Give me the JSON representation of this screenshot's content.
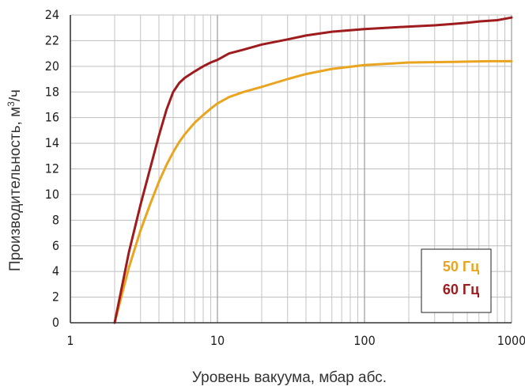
{
  "chart_data": {
    "type": "line",
    "title": "",
    "xlabel": "Уровень вакуума, мбар абс.",
    "ylabel_main": "Производительность, м",
    "ylabel_sup": "3",
    "ylabel_tail": "/ч",
    "xscale": "log",
    "xlim": [
      1,
      1000
    ],
    "ylim": [
      0,
      24
    ],
    "grid": true,
    "legend_position": "bottom-right",
    "x_ticks": [
      1,
      10,
      100,
      1000
    ],
    "x_tick_labels": [
      "1",
      "10",
      "100",
      "1000"
    ],
    "y_ticks": [
      0,
      2,
      4,
      6,
      8,
      10,
      12,
      14,
      16,
      18,
      20,
      22,
      24
    ],
    "y_tick_labels": [
      "0",
      "2",
      "4",
      "6",
      "8",
      "10",
      "12",
      "14",
      "16",
      "18",
      "20",
      "22",
      "24"
    ],
    "series": [
      {
        "name": "50 Гц",
        "color": "#E9A420",
        "x": [
          2,
          2.5,
          3,
          3.5,
          4,
          4.5,
          5,
          5.5,
          6,
          7,
          8,
          9,
          10,
          12,
          15,
          20,
          30,
          40,
          60,
          100,
          200,
          400,
          700,
          1000
        ],
        "y": [
          0,
          4.3,
          7.2,
          9.3,
          11.0,
          12.3,
          13.3,
          14.1,
          14.7,
          15.6,
          16.2,
          16.7,
          17.1,
          17.6,
          18.0,
          18.4,
          19.0,
          19.4,
          19.8,
          20.1,
          20.3,
          20.35,
          20.4,
          20.4
        ]
      },
      {
        "name": "60 Гц",
        "color": "#9E1B1E",
        "x": [
          2,
          2.5,
          3,
          3.5,
          4,
          4.5,
          5,
          5.5,
          6,
          7,
          8,
          9,
          10,
          12,
          15,
          20,
          30,
          40,
          60,
          100,
          200,
          300,
          400,
          500,
          600,
          800,
          1000
        ],
        "y": [
          0,
          5.5,
          9.2,
          12.1,
          14.6,
          16.6,
          18.0,
          18.7,
          19.1,
          19.6,
          20.0,
          20.3,
          20.5,
          21.0,
          21.3,
          21.7,
          22.1,
          22.4,
          22.7,
          22.9,
          23.1,
          23.2,
          23.3,
          23.4,
          23.5,
          23.6,
          23.8
        ]
      }
    ]
  }
}
